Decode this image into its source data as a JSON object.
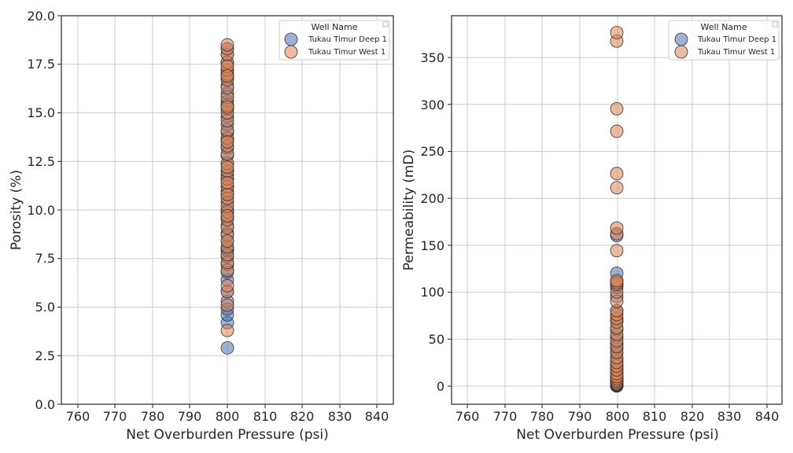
{
  "chart_data": [
    {
      "type": "scatter",
      "xlabel": "Net Overburden Pressure (psi)",
      "ylabel": "Porosity (%)",
      "xlim": [
        755.5,
        844.5
      ],
      "ylim": [
        0,
        20
      ],
      "xticks": [
        760,
        770,
        780,
        790,
        800,
        810,
        820,
        830,
        840
      ],
      "yticks": [
        "0.0",
        "2.5",
        "5.0",
        "7.5",
        "10.0",
        "12.5",
        "15.0",
        "17.5",
        "20.0"
      ],
      "grid": true,
      "legend": {
        "title": "Well Name",
        "placement": "top-right",
        "entries": [
          "Tukau Timur Deep 1",
          "Tukau Timur West 1"
        ]
      },
      "series": [
        {
          "name": "Tukau Timur Deep 1",
          "color": "#4c72b0",
          "x": [
            800,
            800,
            800,
            800,
            800,
            800,
            800,
            800,
            800,
            800,
            800,
            800,
            800,
            800,
            800,
            800,
            800,
            800,
            800,
            800,
            800,
            800,
            800,
            800,
            800,
            800,
            800,
            800,
            800,
            800,
            800,
            800,
            800,
            800,
            800,
            800,
            800,
            800,
            800,
            800
          ],
          "y": [
            2.9,
            4.2,
            4.6,
            4.9,
            5.3,
            5.8,
            6.4,
            6.8,
            7.2,
            7.6,
            8.0,
            8.4,
            8.8,
            9.2,
            9.6,
            10.0,
            10.4,
            10.8,
            11.2,
            11.6,
            12.0,
            12.4,
            12.8,
            13.2,
            13.6,
            14.0,
            14.4,
            14.8,
            15.2,
            15.6,
            16.0,
            16.4,
            16.8,
            17.2,
            17.6,
            18.0,
            18.3,
            7.9,
            9.9,
            11.8
          ]
        },
        {
          "name": "Tukau Timur West 1",
          "color": "#dd8452",
          "x": [
            800,
            800,
            800,
            800,
            800,
            800,
            800,
            800,
            800,
            800,
            800,
            800,
            800,
            800,
            800,
            800,
            800,
            800,
            800,
            800,
            800,
            800,
            800,
            800,
            800,
            800,
            800,
            800,
            800,
            800,
            800,
            800,
            800,
            800,
            800,
            800,
            800,
            800,
            800,
            800,
            800,
            800,
            800,
            800
          ],
          "y": [
            3.8,
            5.1,
            5.8,
            6.1,
            6.9,
            7.3,
            7.7,
            8.1,
            8.7,
            9.1,
            9.5,
            9.9,
            10.2,
            10.6,
            11.0,
            11.2,
            11.6,
            12.0,
            12.4,
            12.9,
            13.3,
            13.7,
            14.1,
            14.6,
            15.0,
            15.4,
            15.8,
            16.3,
            16.7,
            17.0,
            17.2,
            17.6,
            18.0,
            18.3,
            18.5,
            10.8,
            12.2,
            13.5,
            15.3,
            17.4,
            8.4,
            9.7,
            11.4,
            16.9
          ]
        }
      ]
    },
    {
      "type": "scatter",
      "xlabel": "Net Overburden Pressure (psi)",
      "ylabel": "Permeability (mD)",
      "xlim": [
        755.5,
        844.5
      ],
      "ylim": [
        -19.5,
        394
      ],
      "xticks": [
        760,
        770,
        780,
        790,
        800,
        810,
        820,
        830,
        840
      ],
      "yticks": [
        "0",
        "50",
        "100",
        "150",
        "200",
        "250",
        "300",
        "350"
      ],
      "grid": true,
      "legend": {
        "title": "Well Name",
        "placement": "top-right",
        "entries": [
          "Tukau Timur Deep 1",
          "Tukau Timur West 1"
        ]
      },
      "series": [
        {
          "name": "Tukau Timur Deep 1",
          "color": "#4c72b0",
          "x": [
            800,
            800,
            800,
            800,
            800,
            800,
            800,
            800,
            800,
            800,
            800,
            800,
            800,
            800,
            800,
            800,
            800,
            800,
            800,
            800,
            800,
            800,
            800,
            800,
            800,
            800,
            800,
            800,
            800,
            800
          ],
          "y": [
            0,
            0.2,
            0.5,
            1,
            1.5,
            2,
            3,
            4,
            5,
            6,
            8,
            10,
            12,
            15,
            18,
            22,
            26,
            30,
            35,
            40,
            45,
            52,
            60,
            70,
            80,
            95,
            105,
            112,
            120,
            160
          ]
        },
        {
          "name": "Tukau Timur West 1",
          "color": "#dd8452",
          "x": [
            800,
            800,
            800,
            800,
            800,
            800,
            800,
            800,
            800,
            800,
            800,
            800,
            800,
            800,
            800,
            800,
            800,
            800,
            800,
            800,
            800,
            800,
            800,
            800,
            800,
            800,
            800,
            800,
            800,
            800,
            800,
            800,
            800,
            800,
            800,
            800
          ],
          "y": [
            0,
            0.3,
            0.7,
            1.2,
            2,
            3,
            4.5,
            6,
            8,
            10,
            13,
            17,
            21,
            25,
            30,
            36,
            42,
            48,
            55,
            62,
            68,
            72,
            76,
            80,
            90,
            100,
            108,
            110,
            112,
            144,
            162,
            168,
            211,
            226,
            271,
            295
          ]
        },
        {
          "name": "Tukau Timur West 1",
          "color": "#dd8452",
          "x": [
            800,
            800
          ],
          "y": [
            367,
            376
          ]
        }
      ]
    }
  ]
}
